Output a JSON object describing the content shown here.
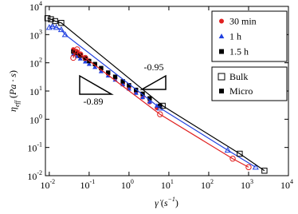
{
  "chart_data": {
    "type": "scatter",
    "log_x": true,
    "log_y": true,
    "xlim": [
      0.008,
      10000
    ],
    "ylim": [
      0.01,
      10000
    ],
    "xticks": [
      {
        "value": 0.01,
        "label": "10",
        "exponent": "-2"
      },
      {
        "value": 0.1,
        "label": "10",
        "exponent": "-1"
      },
      {
        "value": 1,
        "label": "10",
        "exponent": "0"
      },
      {
        "value": 10,
        "label": "10",
        "exponent": "1"
      },
      {
        "value": 100,
        "label": "10",
        "exponent": "2"
      },
      {
        "value": 1000,
        "label": "10",
        "exponent": "3"
      },
      {
        "value": 10000,
        "label": "10",
        "exponent": "4"
      }
    ],
    "yticks": [
      {
        "value": 0.01,
        "label": "10",
        "exponent": "-2"
      },
      {
        "value": 0.1,
        "label": "10",
        "exponent": "-1"
      },
      {
        "value": 1,
        "label": "10",
        "exponent": "0"
      },
      {
        "value": 10,
        "label": "10",
        "exponent": "1"
      },
      {
        "value": 100,
        "label": "10",
        "exponent": "2"
      },
      {
        "value": 1000,
        "label": "10",
        "exponent": "3"
      },
      {
        "value": 10000,
        "label": "10",
        "exponent": "4"
      }
    ],
    "xlabel": [
      "γ̇",
      " (",
      "s",
      "−1",
      ")"
    ],
    "ylabel": [
      "η",
      "eff",
      " (",
      "Pa · s",
      ")"
    ],
    "annotations": [
      "-0.95",
      "-0.89"
    ],
    "legends": [
      {
        "entries": [
          {
            "name": "30 min",
            "color": "#e02020",
            "marker": "circle",
            "filled": true
          },
          {
            "name": "1 h",
            "color": "#2040e0",
            "marker": "triangle",
            "filled": true
          },
          {
            "name": "1.5 h",
            "color": "#000000",
            "marker": "square",
            "filled": true
          }
        ]
      },
      {
        "entries": [
          {
            "name": "Bulk",
            "color": "#000000",
            "marker": "square",
            "filled": false
          },
          {
            "name": "Micro",
            "color": "#000000",
            "marker": "square",
            "filled": true
          }
        ]
      }
    ],
    "series": [
      {
        "color": "#e02020",
        "marker": "circle",
        "filled": true,
        "line": false,
        "x": [
          0.04,
          0.05,
          0.06,
          0.08,
          0.1,
          0.14,
          0.2,
          0.3,
          0.45,
          0.7,
          1,
          1.5,
          2.2,
          3.3,
          5
        ],
        "values": [
          300,
          250,
          200,
          150,
          120,
          90,
          60,
          40,
          28,
          18,
          13,
          9,
          6,
          4,
          2.5
        ]
      },
      {
        "color": "#2040e0",
        "marker": "triangle",
        "filled": true,
        "line": false,
        "x": [
          0.04,
          0.05,
          0.06,
          0.08,
          0.1,
          0.14,
          0.2,
          0.3,
          0.45,
          0.7,
          1,
          1.5,
          2.2,
          3.3,
          5
        ],
        "values": [
          200,
          170,
          140,
          110,
          90,
          70,
          50,
          35,
          25,
          17,
          12,
          8.5,
          6,
          4.2,
          3
        ]
      },
      {
        "color": "#000000",
        "marker": "square",
        "filled": true,
        "line": false,
        "x": [
          0.04,
          0.05,
          0.06,
          0.08,
          0.1,
          0.14,
          0.2,
          0.3,
          0.45,
          0.7,
          1,
          1.5,
          2.2,
          3.3,
          6
        ],
        "values": [
          250,
          220,
          180,
          140,
          115,
          90,
          65,
          45,
          32,
          22,
          16,
          11,
          8,
          5.5,
          3
        ]
      },
      {
        "color": "#e02020",
        "marker": "circle",
        "filled": false,
        "line": true,
        "x": [
          0.04,
          0.045,
          0.05,
          0.06,
          0.08,
          6,
          400,
          1000
        ],
        "values": [
          150,
          250,
          300,
          200,
          150,
          1.5,
          0.04,
          0.02
        ]
      },
      {
        "color": "#2040e0",
        "marker": "triangle",
        "filled": false,
        "line": true,
        "x": [
          0.01,
          0.012,
          0.015,
          0.02,
          0.025,
          6,
          300,
          1500
        ],
        "values": [
          1800,
          2000,
          1800,
          1500,
          1000,
          2.5,
          0.08,
          0.02
        ]
      },
      {
        "color": "#000000",
        "marker": "square",
        "filled": false,
        "line": true,
        "x": [
          0.009,
          0.011,
          0.014,
          0.02,
          7,
          600,
          2500
        ],
        "values": [
          3800,
          3500,
          3000,
          2600,
          3,
          0.06,
          0.015
        ]
      }
    ]
  }
}
